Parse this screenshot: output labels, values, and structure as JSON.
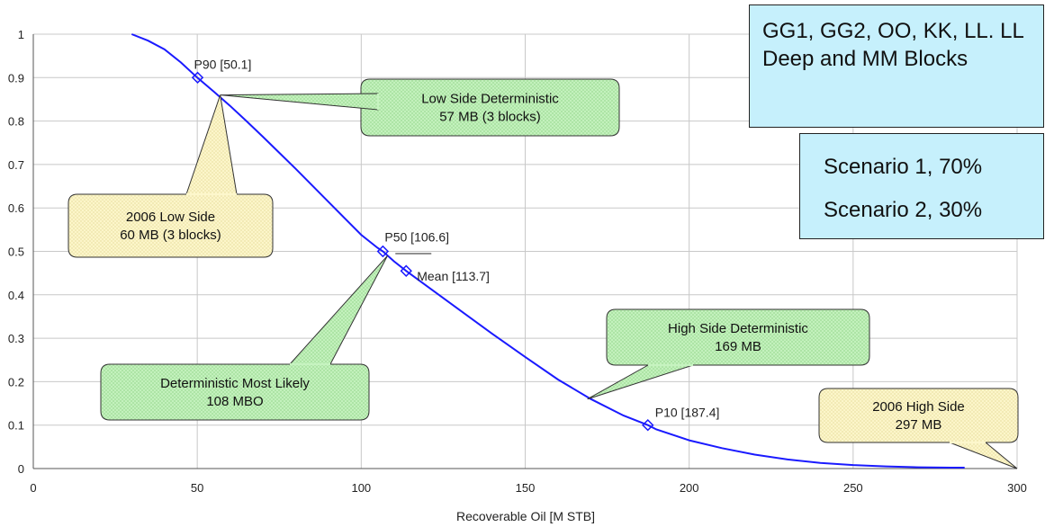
{
  "colors": {
    "curve": "#1a1aff",
    "callout_green": "#c6f3c0",
    "callout_yellow": "#fdf7cc",
    "info_box": "#c6f0fc",
    "grid": "#c8c8c8"
  },
  "chart_data": {
    "type": "line",
    "xlabel": "Recoverable Oil [M STB]",
    "ylabel": "",
    "xlim": [
      0,
      300
    ],
    "ylim": [
      0,
      1
    ],
    "grid": true,
    "x_ticks": [
      "0",
      "50",
      "100",
      "150",
      "200",
      "250",
      "300"
    ],
    "y_ticks": [
      "0",
      "0.1",
      "0.2",
      "0.3",
      "0.4",
      "0.5",
      "0.6",
      "0.7",
      "0.8",
      "0.9",
      "1"
    ],
    "series": [
      {
        "x": [
          30,
          35,
          40,
          45,
          50,
          55,
          60,
          65,
          70,
          75,
          80,
          85,
          90,
          95,
          100,
          105,
          106.6,
          110,
          113.7,
          120,
          130,
          140,
          150,
          160,
          170,
          180,
          187.4,
          190,
          200,
          210,
          220,
          230,
          240,
          250,
          260,
          270,
          280,
          284
        ],
        "y": [
          1.0,
          0.985,
          0.965,
          0.935,
          0.9,
          0.868,
          0.835,
          0.8,
          0.764,
          0.727,
          0.69,
          0.652,
          0.614,
          0.576,
          0.538,
          0.508,
          0.5,
          0.477,
          0.455,
          0.42,
          0.365,
          0.31,
          0.257,
          0.205,
          0.16,
          0.122,
          0.1,
          0.09,
          0.065,
          0.047,
          0.032,
          0.021,
          0.013,
          0.008,
          0.005,
          0.003,
          0.002,
          0.002
        ]
      }
    ],
    "markers": [
      {
        "x": 50.1,
        "y": 0.9,
        "label": "P90 [50.1]"
      },
      {
        "x": 106.6,
        "y": 0.5,
        "label": "P50 [106.6]"
      },
      {
        "x": 113.7,
        "y": 0.455,
        "label": "Mean [113.7]"
      },
      {
        "x": 187.4,
        "y": 0.1,
        "label": "P10 [187.4]"
      }
    ],
    "annotations": [
      {
        "name": "low-side-deterministic",
        "lines": [
          "Low Side Deterministic",
          "57 MB (3 blocks)"
        ],
        "style": "green",
        "target": [
          57,
          0.86
        ]
      },
      {
        "name": "2006-low-side",
        "lines": [
          "2006 Low Side",
          "60 MB (3 blocks)"
        ],
        "style": "yellow",
        "target": [
          57,
          0.86
        ]
      },
      {
        "name": "deterministic-most-likely",
        "lines": [
          "Deterministic Most Likely",
          "108 MBO"
        ],
        "style": "green",
        "target": [
          108,
          0.49
        ]
      },
      {
        "name": "high-side-deterministic",
        "lines": [
          "High Side Deterministic",
          "169 MB"
        ],
        "style": "green",
        "target": [
          169,
          0.16
        ]
      },
      {
        "name": "2006-high-side",
        "lines": [
          "2006 High Side",
          "297 MB"
        ],
        "style": "yellow",
        "target": [
          300,
          0.0
        ]
      }
    ]
  },
  "info_boxes": {
    "blocks": "GG1, GG2, OO, KK, LL. LL Deep and MM Blocks",
    "scenario_1": "Scenario 1, 70%",
    "scenario_2": "Scenario 2, 30%"
  }
}
